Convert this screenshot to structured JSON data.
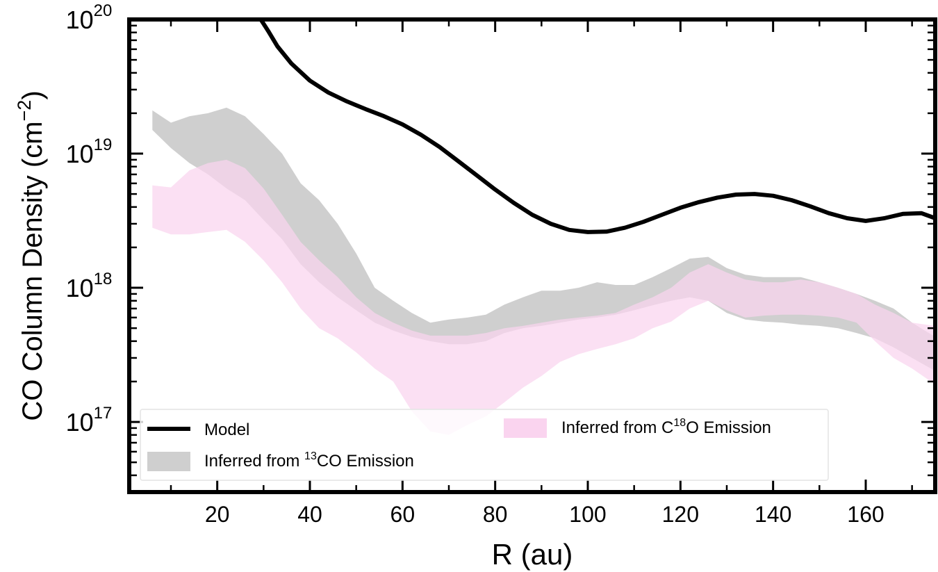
{
  "chart_data": {
    "type": "line",
    "title": "",
    "xlabel": "R (au)",
    "ylabel": "CO Column Density (cm",
    "ylabel_sup": "−2",
    "ylabel_close": ")",
    "xlim": [
      1,
      175
    ],
    "ylim": [
      3e+16,
      1e+20
    ],
    "yscale": "log",
    "xticks": [
      20,
      40,
      60,
      80,
      100,
      120,
      140,
      160
    ],
    "yticks": [
      {
        "value": 1e+17,
        "base": "10",
        "exp": "17"
      },
      {
        "value": 1e+18,
        "base": "10",
        "exp": "18"
      },
      {
        "value": 1e+19,
        "base": "10",
        "exp": "19"
      },
      {
        "value": 1e+20,
        "base": "10",
        "exp": "20"
      }
    ],
    "legend": {
      "position": "lower-left",
      "entries": [
        {
          "label": "Model",
          "kind": "line",
          "color": "#000000"
        },
        {
          "label_pre": "Inferred from ",
          "label_sup": "13",
          "label_post": "CO Emission",
          "kind": "band",
          "color": "#cfcfcf"
        },
        {
          "label_pre": "Inferred from C",
          "label_sup": "18",
          "label_post": "O Emission",
          "kind": "band",
          "color": "#fad4ef"
        }
      ]
    },
    "series": [
      {
        "name": "Model",
        "type": "line",
        "color": "#000000",
        "x": [
          29,
          31,
          33,
          36,
          40,
          44,
          48,
          52,
          56,
          60,
          64,
          68,
          72,
          76,
          80,
          84,
          88,
          92,
          96,
          100,
          104,
          108,
          112,
          116,
          120,
          124,
          128,
          132,
          136,
          140,
          144,
          148,
          152,
          156,
          160,
          164,
          168,
          172,
          175
        ],
        "y": [
          1.05e+20,
          8.2e+19,
          6.3e+19,
          4.7e+19,
          3.5e+19,
          2.85e+19,
          2.45e+19,
          2.15e+19,
          1.9e+19,
          1.65e+19,
          1.38e+19,
          1.12e+19,
          8.8e+18,
          6.9e+18,
          5.4e+18,
          4.3e+18,
          3.5e+18,
          3e+18,
          2.7e+18,
          2.6e+18,
          2.62e+18,
          2.8e+18,
          3.1e+18,
          3.5e+18,
          3.95e+18,
          4.35e+18,
          4.7e+18,
          4.95e+18,
          5e+18,
          4.85e+18,
          4.5e+18,
          4.05e+18,
          3.6e+18,
          3.3e+18,
          3.15e+18,
          3.3e+18,
          3.55e+18,
          3.6e+18,
          3.3e+18
        ]
      },
      {
        "name": "13CO band",
        "type": "band",
        "color": "#cfcfcf",
        "x": [
          6,
          10,
          14,
          18,
          22,
          26,
          30,
          34,
          38,
          42,
          46,
          50,
          54,
          58,
          62,
          66,
          70,
          74,
          78,
          82,
          86,
          90,
          94,
          98,
          102,
          106,
          110,
          114,
          118,
          122,
          126,
          130,
          134,
          138,
          142,
          146,
          150,
          154,
          158,
          162,
          166,
          170,
          175
        ],
        "upper": [
          2.1e+19,
          1.7e+19,
          1.9e+19,
          2e+19,
          2.2e+19,
          1.9e+19,
          1.4e+19,
          1e+19,
          6e+18,
          4.5e+18,
          3e+18,
          1.8e+18,
          1e+18,
          8e+17,
          6.5e+17,
          5.5e+17,
          5.8e+17,
          6e+17,
          6.3e+17,
          7.5e+17,
          8.5e+17,
          9.5e+17,
          9.5e+17,
          1e+18,
          1.1e+18,
          1.05e+18,
          1.05e+18,
          1.2e+18,
          1.4e+18,
          1.65e+18,
          1.7e+18,
          1.4e+18,
          1.25e+18,
          1.2e+18,
          1.2e+18,
          1.2e+18,
          1.1e+18,
          1e+18,
          9e+17,
          8e+17,
          7e+17,
          5.5e+17,
          4.3e+17
        ],
        "lower": [
          1.5e+19,
          1.1e+19,
          8.5e+18,
          7e+18,
          5.5e+18,
          4.5e+18,
          3.2e+18,
          2.3e+18,
          1.5e+18,
          1.1e+18,
          8.5e+17,
          6.8e+17,
          5.5e+17,
          4.8e+17,
          4.3e+17,
          4e+17,
          3.8e+17,
          3.8e+17,
          4e+17,
          4.6e+17,
          5e+17,
          5.2e+17,
          5.5e+17,
          5.8e+17,
          6e+17,
          6.3e+17,
          6.8e+17,
          7.4e+17,
          8e+17,
          8.5e+17,
          8e+17,
          6.5e+17,
          5.8e+17,
          5.6e+17,
          5.5e+17,
          5.3e+17,
          5.2e+17,
          5e+17,
          4.6e+17,
          4.2e+17,
          3.6e+17,
          3e+17,
          2.4e+17
        ]
      },
      {
        "name": "C18O band",
        "type": "band",
        "color": "#fad4ef",
        "x": [
          6,
          10,
          14,
          18,
          22,
          26,
          30,
          34,
          38,
          42,
          46,
          50,
          54,
          58,
          62,
          66,
          70,
          74,
          78,
          82,
          86,
          90,
          94,
          98,
          102,
          106,
          110,
          114,
          118,
          122,
          126,
          130,
          134,
          138,
          142,
          146,
          150,
          154,
          158,
          162,
          166,
          170,
          175
        ],
        "upper": [
          5.8e+18,
          5.6e+18,
          7.5e+18,
          8.5e+18,
          9e+18,
          7.8e+18,
          5.5e+18,
          3.5e+18,
          2.2e+18,
          1.6e+18,
          1.2e+18,
          8.5e+17,
          6.5e+17,
          5.5e+17,
          4.8e+17,
          4.4e+17,
          4.4e+17,
          4.4e+17,
          4.6e+17,
          5e+17,
          5.2e+17,
          5.5e+17,
          5.8e+17,
          6e+17,
          6.2e+17,
          6.5e+17,
          7.5e+17,
          8.5e+17,
          1e+18,
          1.3e+18,
          1.5e+18,
          1.3e+18,
          1.15e+18,
          1.1e+18,
          1.1e+18,
          1.15e+18,
          1.1e+18,
          1e+18,
          9e+17,
          7.5e+17,
          6.5e+17,
          5.5e+17,
          5.2e+17
        ],
        "lower": [
          2.8e+18,
          2.5e+18,
          2.5e+18,
          2.6e+18,
          2.7e+18,
          2.2e+18,
          1.6e+18,
          1.1e+18,
          7e+17,
          5e+17,
          4.2e+17,
          3.3e+17,
          2.5e+17,
          2e+17,
          1.2e+17,
          8.5e+16,
          8e+16,
          9.5e+16,
          1.1e+17,
          1.4e+17,
          1.8e+17,
          2.2e+17,
          2.8e+17,
          3.2e+17,
          3.5e+17,
          3.8e+17,
          4.2e+17,
          5e+17,
          5.6e+17,
          7e+17,
          8e+17,
          6.8e+17,
          6e+17,
          6.2e+17,
          6.3e+17,
          6.3e+17,
          6.2e+17,
          6e+17,
          5.5e+17,
          4e+17,
          3e+17,
          2.5e+17,
          1.9e+17
        ]
      }
    ]
  }
}
